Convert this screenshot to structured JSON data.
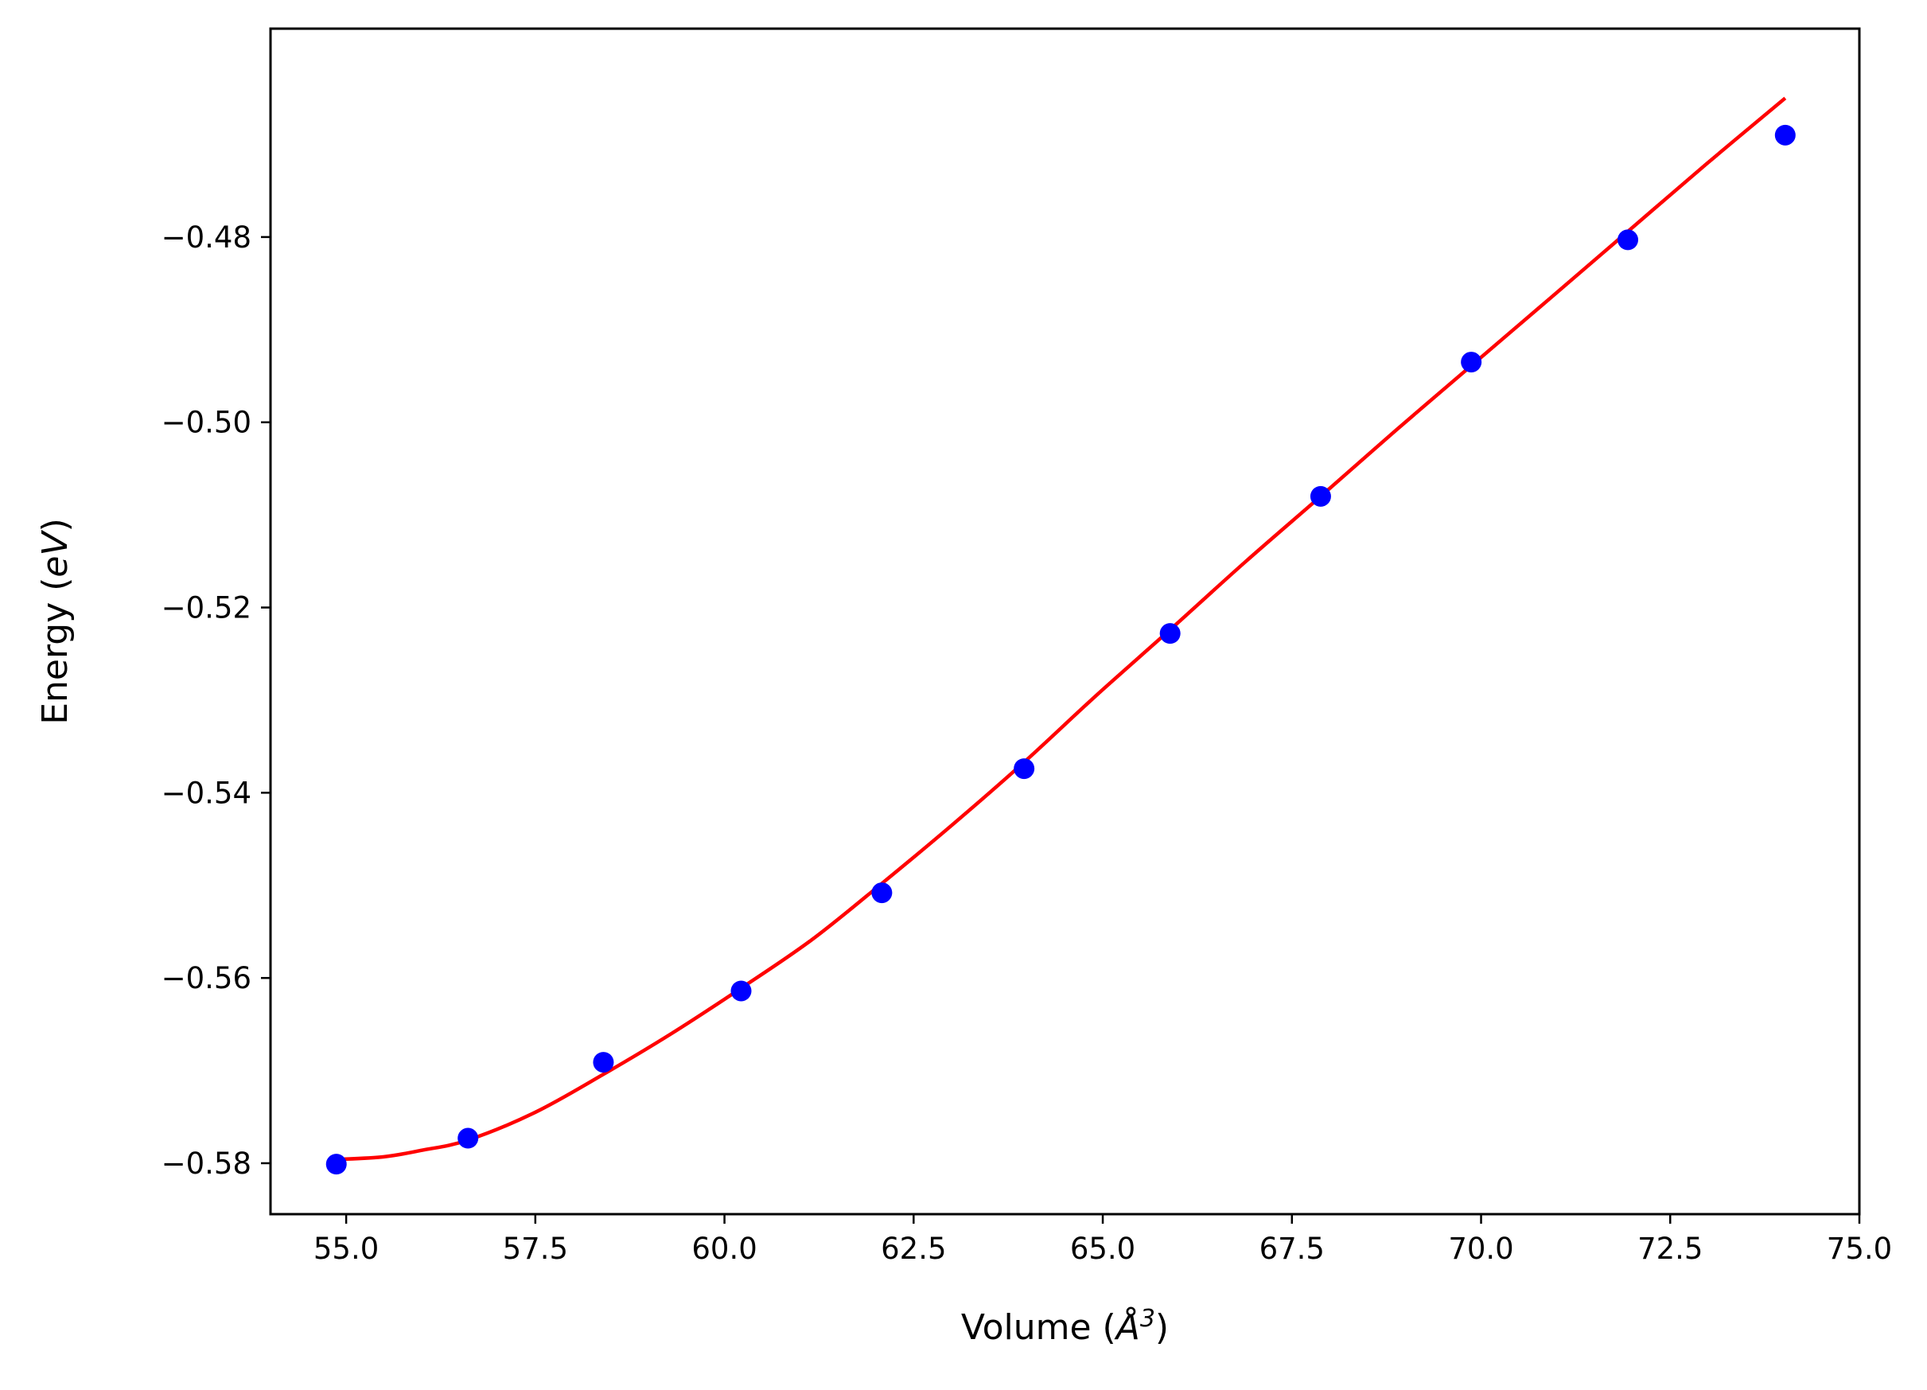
{
  "chart_data": {
    "type": "scatter",
    "xlabel": "Volume (Å³)",
    "ylabel": "Energy (eV)",
    "xlabel_parts": {
      "prefix": "Volume (",
      "symbol": "Å",
      "sup": "3",
      "suffix": ")"
    },
    "ylabel_parts": {
      "prefix": "Energy (",
      "symbol": "eV",
      "suffix": ")"
    },
    "xlim": [
      54.0,
      75.0
    ],
    "ylim": [
      -0.5855,
      -0.4575
    ],
    "xticks": [
      55.0,
      57.5,
      60.0,
      62.5,
      65.0,
      67.5,
      70.0,
      72.5,
      75.0
    ],
    "xtick_labels": [
      "55.0",
      "57.5",
      "60.0",
      "62.5",
      "65.0",
      "67.5",
      "70.0",
      "72.5",
      "75.0"
    ],
    "yticks": [
      -0.58,
      -0.56,
      -0.54,
      -0.52,
      -0.5,
      -0.48
    ],
    "ytick_labels": [
      "−0.58",
      "−0.56",
      "−0.54",
      "−0.52",
      "−0.50",
      "−0.48"
    ],
    "grid": false,
    "legend": "none",
    "series": [
      {
        "kind": "points",
        "color": "#0000ff",
        "x": [
          54.87,
          56.61,
          58.4,
          60.22,
          62.08,
          63.96,
          65.89,
          67.88,
          69.87,
          71.94,
          74.02
        ],
        "y": [
          -0.5801,
          -0.5773,
          -0.5691,
          -0.5614,
          -0.5508,
          -0.5374,
          -0.5228,
          -0.508,
          -0.4935,
          -0.4803,
          -0.469
        ]
      },
      {
        "kind": "fit-line",
        "color": "#ff0000",
        "x": [
          54.87,
          55.5,
          56.0,
          56.61,
          57.5,
          58.4,
          59.3,
          60.22,
          61.15,
          62.08,
          63.02,
          63.96,
          64.9,
          65.89,
          66.88,
          67.88,
          68.87,
          69.87,
          70.9,
          71.94,
          72.98,
          74.02
        ],
        "y": [
          -0.5796,
          -0.5793,
          -0.5786,
          -0.5775,
          -0.5745,
          -0.5704,
          -0.566,
          -0.5611,
          -0.5559,
          -0.5498,
          -0.5434,
          -0.5367,
          -0.5296,
          -0.5224,
          -0.5151,
          -0.508,
          -0.5009,
          -0.4939,
          -0.4867,
          -0.4794,
          -0.4721,
          -0.465
        ]
      }
    ]
  },
  "colors": {
    "frame": "#000000",
    "background": "#ffffff",
    "points": "#0000ff",
    "fit": "#ff0000"
  }
}
